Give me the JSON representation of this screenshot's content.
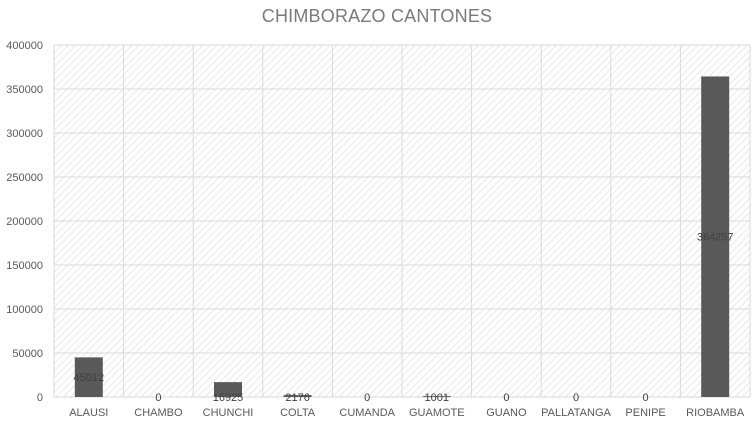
{
  "chart_data": {
    "type": "bar",
    "title": "CHIMBORAZO CANTONES",
    "xlabel": "",
    "ylabel": "",
    "categories": [
      "ALAUSI",
      "CHAMBO",
      "CHUNCHI",
      "COLTA",
      "CUMANDA",
      "GUAMOTE",
      "GUANO",
      "PALLATANGA",
      "PENIPE",
      "RIOBAMBA"
    ],
    "values": [
      45012,
      0,
      16925,
      2176,
      0,
      1001,
      0,
      0,
      0,
      364257
    ],
    "data_labels": [
      "45012",
      "0",
      "16925",
      "2176",
      "0",
      "1001",
      "0",
      "0",
      "0",
      "364257"
    ],
    "ylim": [
      0,
      400000
    ],
    "yticks": [
      "0",
      "50000",
      "100000",
      "150000",
      "200000",
      "250000",
      "300000",
      "350000",
      "400000"
    ],
    "grid": true,
    "bar_color": "#595959",
    "grid_color": "#d9d9d9",
    "plot_background": "hatched light gray diagonal"
  }
}
